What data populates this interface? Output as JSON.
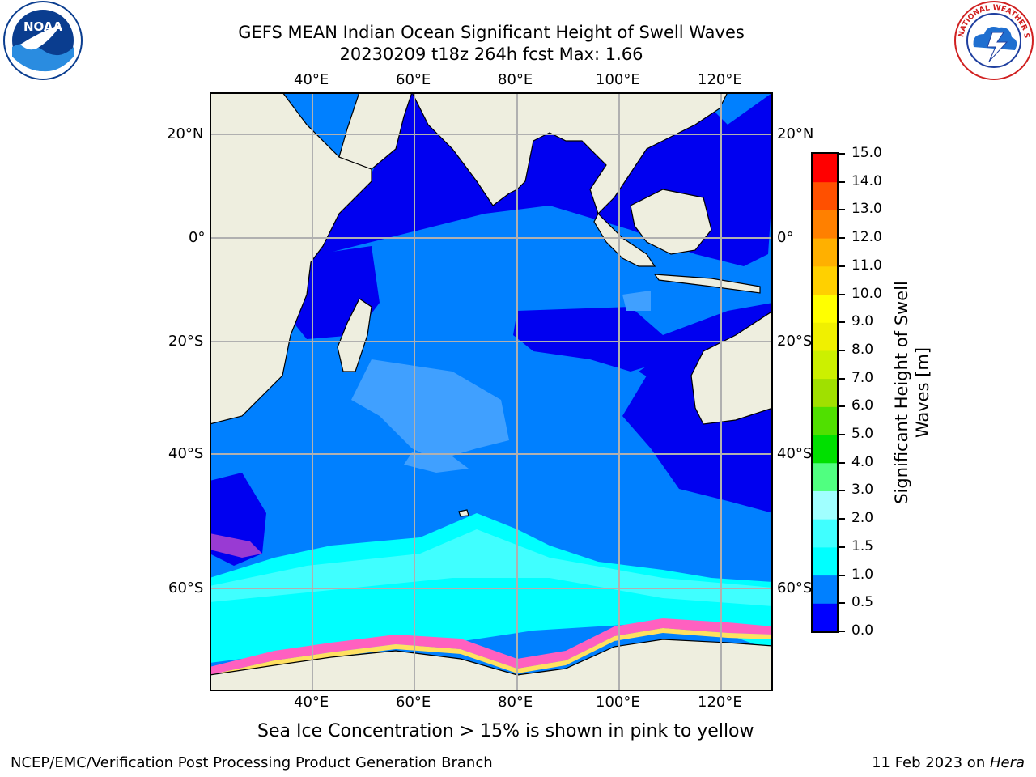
{
  "title_line1": "GEFS MEAN Indian Ocean Significant Height of Swell Waves",
  "title_line2": "20230209 t18z 264h fcst   Max: 1.66",
  "lon_labels": [
    "40°E",
    "60°E",
    "80°E",
    "100°E",
    "120°E"
  ],
  "lat_labels": [
    "20°N",
    "0°",
    "20°S",
    "40°S",
    "60°S"
  ],
  "colorbar": {
    "title_line1": "Significant Height of Swell",
    "title_line2": "Waves [m]",
    "levels": [
      "0.0",
      "0.5",
      "1.0",
      "1.5",
      "2.0",
      "3.0",
      "4.0",
      "5.0",
      "6.0",
      "7.0",
      "8.0",
      "9.0",
      "10.0",
      "11.0",
      "12.0",
      "13.0",
      "14.0",
      "15.0"
    ],
    "colors": [
      "#0000ff",
      "#0080ff",
      "#00ffff",
      "#40ffff",
      "#a0ffff",
      "#50ff80",
      "#00e000",
      "#50e000",
      "#a0e000",
      "#ccf000",
      "#f0f000",
      "#ffff00",
      "#ffd000",
      "#ffb000",
      "#ff8000",
      "#ff5000",
      "#ff0000"
    ]
  },
  "sea_ice_note": "Sea Ice Concentration > 15% is shown in pink to yellow",
  "footer_left": "NCEP/EMC/Verification Post Processing Product Generation Branch",
  "footer_right_prefix": "11 Feb 2023 on ",
  "footer_right_host": "Hera",
  "logos": {
    "left": "noaa-logo",
    "right": "nws-logo"
  },
  "colors": {
    "land": "#eeeedf",
    "deep": "#0000f0",
    "mid": "#0080ff",
    "cyan": "#00ffff",
    "grid": "#b0b0b0"
  }
}
